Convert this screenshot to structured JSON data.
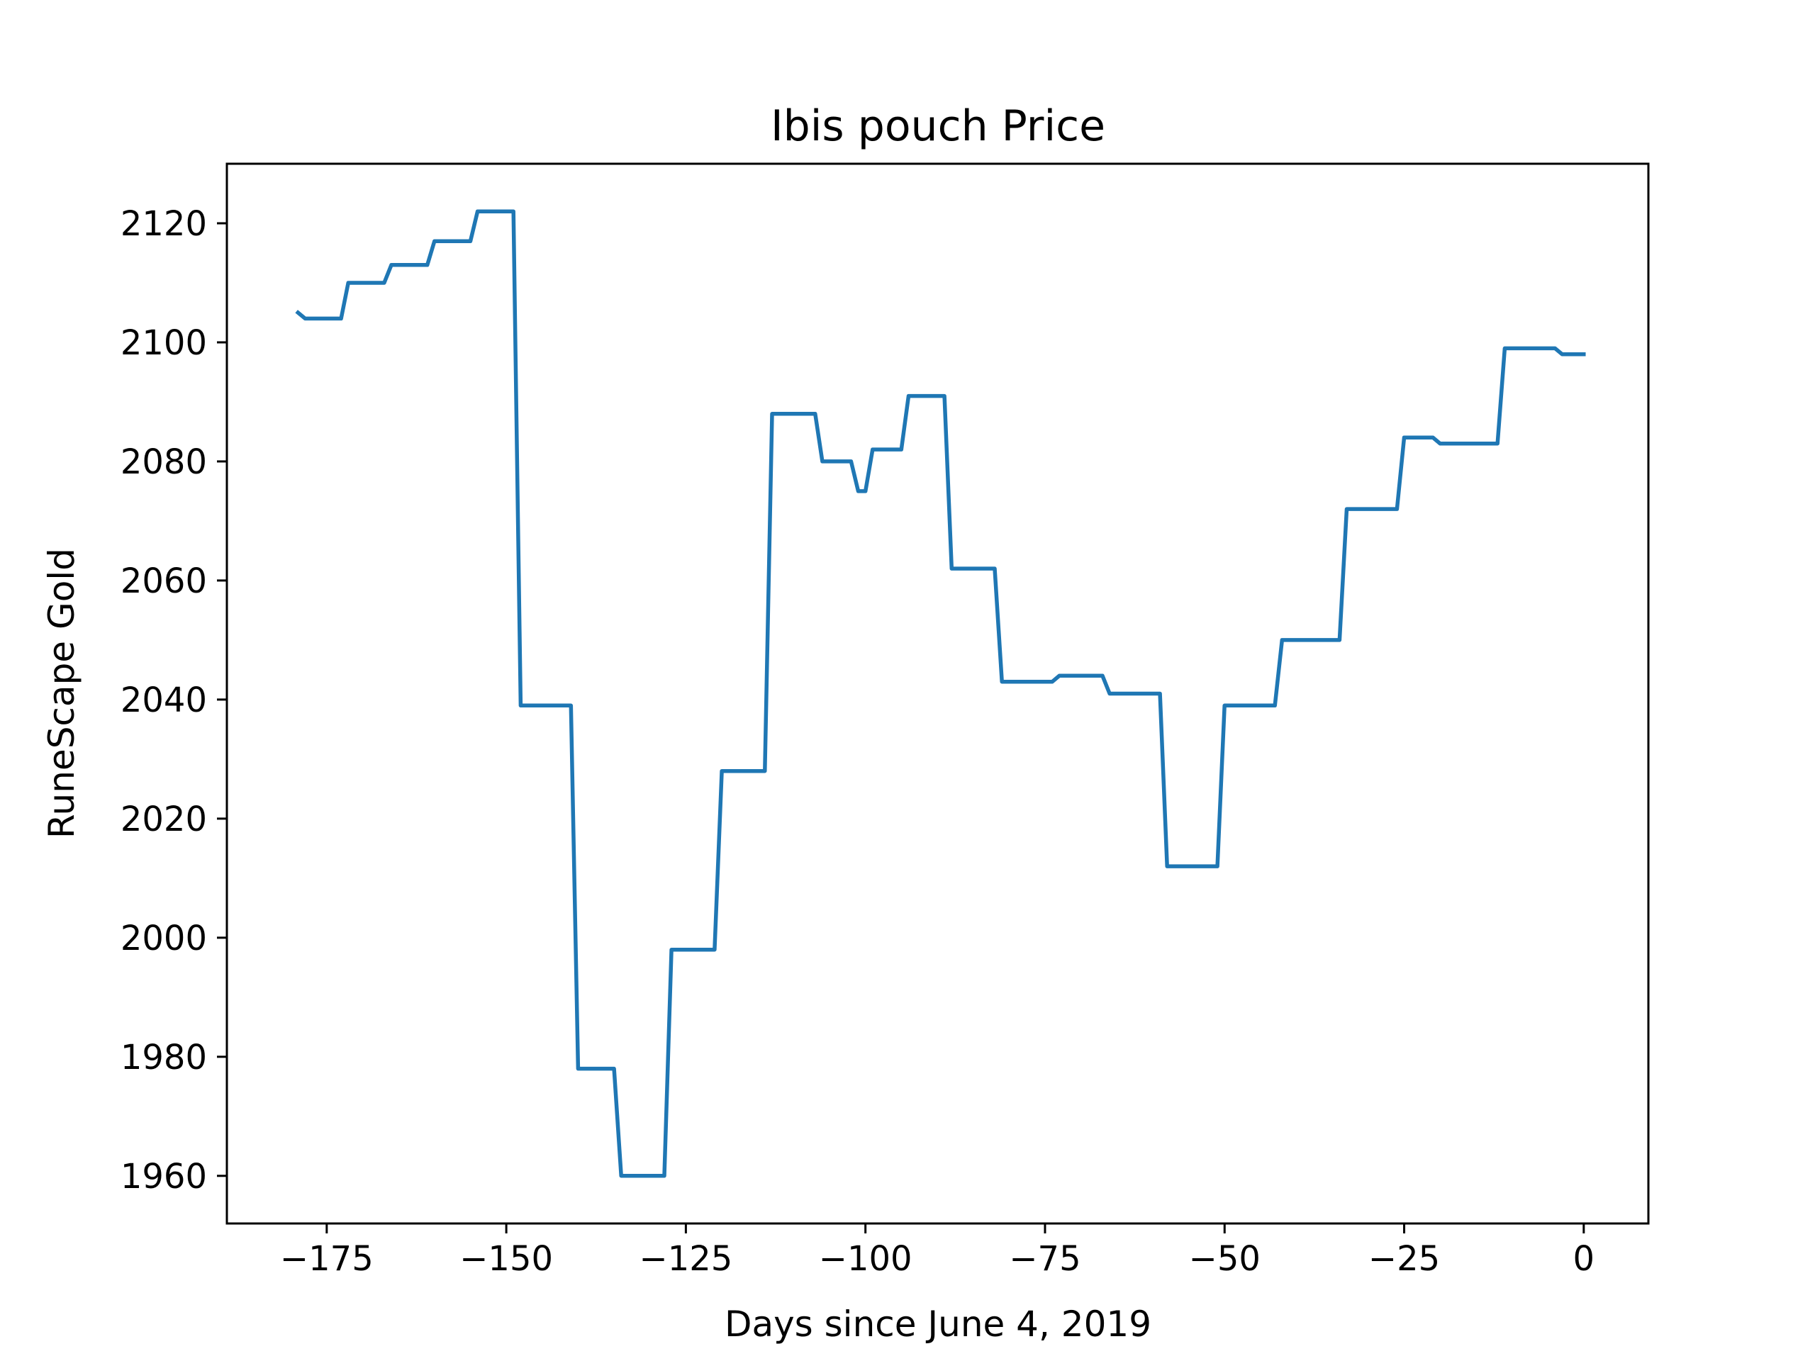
{
  "chart_data": {
    "type": "line",
    "title": "Ibis pouch Price",
    "xlabel": "Days since June 4, 2019",
    "ylabel": "RuneScape Gold",
    "xlim": [
      -188.9,
      9
    ],
    "ylim": [
      1952,
      2130
    ],
    "xticks": [
      -175,
      -150,
      -125,
      -100,
      -75,
      -50,
      -25,
      0
    ],
    "xtick_labels": [
      "−175",
      "−150",
      "−125",
      "−100",
      "−75",
      "−50",
      "−25",
      "0"
    ],
    "yticks": [
      1960,
      1980,
      2000,
      2020,
      2040,
      2060,
      2080,
      2100,
      2120
    ],
    "ytick_labels": [
      "1960",
      "1980",
      "2000",
      "2020",
      "2040",
      "2060",
      "2080",
      "2100",
      "2120"
    ],
    "grid": false,
    "series": [
      {
        "color": "#1f77b4",
        "points": [
          [
            -179,
            2105
          ],
          [
            -178,
            2104
          ],
          [
            -173,
            2104
          ],
          [
            -172,
            2110
          ],
          [
            -167,
            2110
          ],
          [
            -166,
            2113
          ],
          [
            -161,
            2113
          ],
          [
            -160,
            2117
          ],
          [
            -155,
            2117
          ],
          [
            -154,
            2122
          ],
          [
            -149,
            2122
          ],
          [
            -148,
            2039
          ],
          [
            -141,
            2039
          ],
          [
            -140,
            1978
          ],
          [
            -135,
            1978
          ],
          [
            -134,
            1960
          ],
          [
            -128,
            1960
          ],
          [
            -127,
            1998
          ],
          [
            -121,
            1998
          ],
          [
            -120,
            2028
          ],
          [
            -114,
            2028
          ],
          [
            -113,
            2088
          ],
          [
            -107,
            2088
          ],
          [
            -106,
            2080
          ],
          [
            -103,
            2080
          ],
          [
            -102,
            2080
          ],
          [
            -101,
            2075
          ],
          [
            -100,
            2075
          ],
          [
            -99,
            2082
          ],
          [
            -95,
            2082
          ],
          [
            -94,
            2091
          ],
          [
            -89,
            2091
          ],
          [
            -88,
            2062
          ],
          [
            -82,
            2062
          ],
          [
            -81,
            2043
          ],
          [
            -74,
            2043
          ],
          [
            -73,
            2044
          ],
          [
            -67,
            2044
          ],
          [
            -66,
            2041
          ],
          [
            -59,
            2041
          ],
          [
            -58,
            2012
          ],
          [
            -51,
            2012
          ],
          [
            -50,
            2039
          ],
          [
            -43,
            2039
          ],
          [
            -42,
            2050
          ],
          [
            -34,
            2050
          ],
          [
            -33,
            2072
          ],
          [
            -26,
            2072
          ],
          [
            -25,
            2084
          ],
          [
            -21,
            2084
          ],
          [
            -20,
            2083
          ],
          [
            -12,
            2083
          ],
          [
            -11,
            2099
          ],
          [
            -4,
            2099
          ],
          [
            -3,
            2098
          ],
          [
            0,
            2098
          ]
        ]
      }
    ]
  }
}
